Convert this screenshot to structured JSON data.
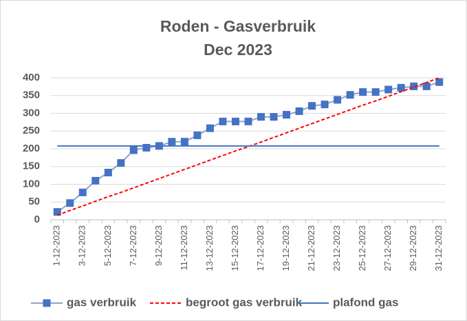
{
  "chart_data": {
    "type": "line",
    "title": "Roden - Gasverbruik",
    "subtitle": "Dec 2023",
    "categories": [
      "1-12-2023",
      null,
      "3-12-2023",
      null,
      "5-12-2023",
      null,
      "7-12-2023",
      null,
      "9-12-2023",
      null,
      "11-12-2023",
      null,
      "13-12-2023",
      null,
      "15-12-2023",
      null,
      "17-12-2023",
      null,
      "19-12-2023",
      null,
      "21-12-2023",
      null,
      "23-12-2023",
      null,
      "25-12-2023",
      null,
      "27-12-2023",
      null,
      "29-12-2023",
      null,
      "31-12-2023"
    ],
    "series": [
      {
        "name": "gas verbruik",
        "color": "#4472c4",
        "line_color": "#8ea4c8",
        "marker": "square",
        "style": "solid",
        "values": [
          22,
          47,
          77,
          110,
          133,
          160,
          196,
          203,
          208,
          220,
          220,
          238,
          258,
          277,
          277,
          277,
          290,
          290,
          296,
          306,
          321,
          325,
          338,
          352,
          360,
          360,
          367,
          372,
          376,
          376,
          388
        ]
      },
      {
        "name": "begroot gas verbruik",
        "color": "#ff0000",
        "style": "dashed",
        "values": [
          13,
          26,
          39,
          52,
          65,
          77,
          90,
          103,
          116,
          129,
          142,
          155,
          168,
          181,
          194,
          206,
          219,
          232,
          245,
          258,
          271,
          284,
          297,
          310,
          323,
          335,
          348,
          361,
          374,
          387,
          400
        ]
      },
      {
        "name": "plafond gas",
        "color": "#4472c4",
        "style": "solid",
        "values": [
          208,
          208,
          208,
          208,
          208,
          208,
          208,
          208,
          208,
          208,
          208,
          208,
          208,
          208,
          208,
          208,
          208,
          208,
          208,
          208,
          208,
          208,
          208,
          208,
          208,
          208,
          208,
          208,
          208,
          208,
          208
        ]
      }
    ],
    "ylim": [
      0,
      400
    ],
    "yticks": [
      0,
      50,
      100,
      150,
      200,
      250,
      300,
      350,
      400
    ],
    "grid": true,
    "legend": "bottom"
  }
}
